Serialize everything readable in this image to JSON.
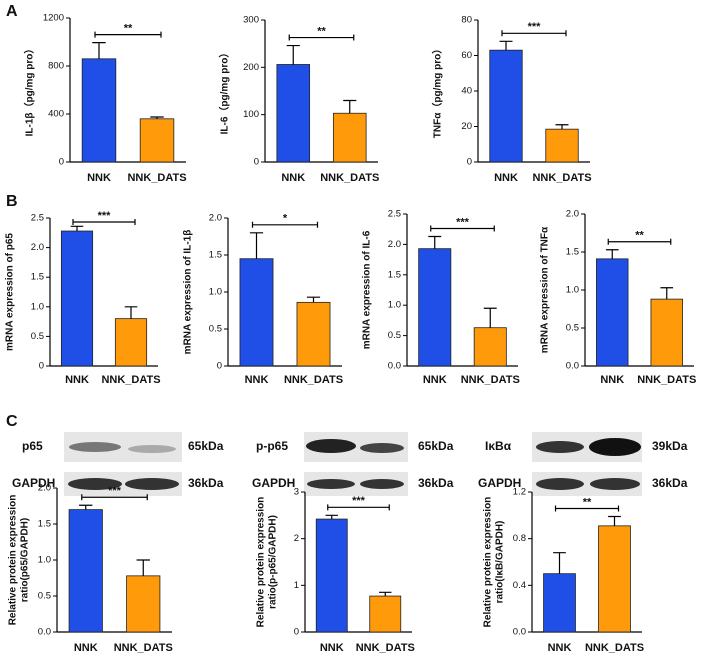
{
  "panel_labels": [
    "A",
    "B",
    "C"
  ],
  "blots": [
    {
      "protein": "p65",
      "size": "65kDa",
      "control": "GAPDH",
      "control_size": "36kDa"
    },
    {
      "protein": "p-p65",
      "size": "65kDa",
      "control": "GAPDH",
      "control_size": "36kDa"
    },
    {
      "protein": "IκBα",
      "size": "39kDa",
      "control": "GAPDH",
      "control_size": "36kDa"
    }
  ],
  "chart_data": [
    {
      "type": "bar",
      "ylabel": [
        "IL-1β（pg/mg pro）"
      ],
      "categories": [
        "NNK",
        "NNK_DATS"
      ],
      "values": [
        860,
        360
      ],
      "errors": [
        135,
        15
      ],
      "colors": [
        "#1f4fe6",
        "#ff9a0a"
      ],
      "ylim": [
        0,
        1200
      ],
      "yticks": [
        0,
        400,
        800,
        1200
      ],
      "annotation": "**"
    },
    {
      "type": "bar",
      "ylabel": [
        "IL-6（pg/mg pro）"
      ],
      "categories": [
        "NNK",
        "NNK_DATS"
      ],
      "values": [
        206,
        103
      ],
      "errors": [
        40,
        27
      ],
      "colors": [
        "#1f4fe6",
        "#ff9a0a"
      ],
      "ylim": [
        0,
        300
      ],
      "yticks": [
        0,
        100,
        200,
        300
      ],
      "annotation": "**"
    },
    {
      "type": "bar",
      "ylabel": [
        "TNFα（pg/mg pro）"
      ],
      "categories": [
        "NNK",
        "NNK_DATS"
      ],
      "values": [
        63,
        18.5
      ],
      "errors": [
        5,
        2.5
      ],
      "colors": [
        "#1f4fe6",
        "#ff9a0a"
      ],
      "ylim": [
        0,
        80
      ],
      "yticks": [
        0,
        20,
        40,
        60,
        80
      ],
      "annotation": "***"
    },
    {
      "type": "bar",
      "ylabel": [
        "mRNA expression of p65"
      ],
      "categories": [
        "NNK",
        "NNK_DATS"
      ],
      "values": [
        2.28,
        0.8
      ],
      "errors": [
        0.08,
        0.2
      ],
      "colors": [
        "#1f4fe6",
        "#ff9a0a"
      ],
      "ylim": [
        0,
        2.5
      ],
      "yticks": [
        0,
        0.5,
        {
          "value": 1,
          "label": "1.0"
        },
        1.5,
        {
          "value": 2,
          "label": "2.0"
        },
        2.5
      ],
      "annotation": "***"
    },
    {
      "type": "bar",
      "ylabel": [
        "mRNA expression of IL-1β"
      ],
      "categories": [
        "NNK",
        "NNK_DATS"
      ],
      "values": [
        1.45,
        0.86
      ],
      "errors": [
        0.35,
        0.07
      ],
      "colors": [
        "#1f4fe6",
        "#ff9a0a"
      ],
      "ylim": [
        0,
        2
      ],
      "yticks": [
        0,
        0.5,
        {
          "value": 1,
          "label": "1.0"
        },
        1.5,
        {
          "value": 2,
          "label": "2.0"
        }
      ],
      "annotation": "*"
    },
    {
      "type": "bar",
      "ylabel": [
        "mRNA expression of IL-6"
      ],
      "categories": [
        "NNK",
        "NNK_DATS"
      ],
      "values": [
        1.93,
        0.63
      ],
      "errors": [
        0.2,
        0.32
      ],
      "colors": [
        "#1f4fe6",
        "#ff9a0a"
      ],
      "ylim": [
        0,
        2.5
      ],
      "yticks": [
        {
          "value": 0,
          "label": "0.0"
        },
        0.5,
        {
          "value": 1,
          "label": "1.0"
        },
        1.5,
        {
          "value": 2,
          "label": "2.0"
        },
        2.5
      ],
      "annotation": "***"
    },
    {
      "type": "bar",
      "ylabel": [
        "mRNA expression of TNFα"
      ],
      "categories": [
        "NNK",
        "NNK_DATS"
      ],
      "values": [
        1.41,
        0.88
      ],
      "errors": [
        0.12,
        0.15
      ],
      "colors": [
        "#1f4fe6",
        "#ff9a0a"
      ],
      "ylim": [
        0,
        2
      ],
      "yticks": [
        {
          "value": 0,
          "label": "0.0"
        },
        0.5,
        {
          "value": 1,
          "label": "1.0"
        },
        1.5,
        {
          "value": 2,
          "label": "2.0"
        }
      ],
      "annotation": "**"
    },
    {
      "type": "bar",
      "ylabel": [
        "Relative protein expression",
        "ratio(p65/GAPDH)"
      ],
      "categories": [
        "NNK",
        "NNK_DATS"
      ],
      "values": [
        1.7,
        0.78
      ],
      "errors": [
        0.06,
        0.22
      ],
      "colors": [
        "#1f4fe6",
        "#ff9a0a"
      ],
      "ylim": [
        0,
        2
      ],
      "yticks": [
        {
          "value": 0,
          "label": "0.0"
        },
        0.5,
        {
          "value": 1,
          "label": "1.0"
        },
        1.5,
        {
          "value": 2,
          "label": "2.0"
        }
      ],
      "annotation": "***"
    },
    {
      "type": "bar",
      "ylabel": [
        "Relative protein expression",
        "ratio(p-p65/GAPDH)"
      ],
      "categories": [
        "NNK",
        "NNK_DATS"
      ],
      "values": [
        2.42,
        0.77
      ],
      "errors": [
        0.08,
        0.08
      ],
      "colors": [
        "#1f4fe6",
        "#ff9a0a"
      ],
      "ylim": [
        0,
        3
      ],
      "yticks": [
        0,
        1,
        2,
        3
      ],
      "annotation": "***"
    },
    {
      "type": "bar",
      "ylabel": [
        "Relative protein expression",
        "ratio(IκB/GAPDH)"
      ],
      "categories": [
        "NNK",
        "NNK_DATS"
      ],
      "values": [
        0.5,
        0.91
      ],
      "errors": [
        0.18,
        0.08
      ],
      "colors": [
        "#1f4fe6",
        "#ff9a0a"
      ],
      "ylim": [
        0,
        1.2
      ],
      "yticks": [
        {
          "value": 0,
          "label": "0.0"
        },
        0.4,
        0.8,
        1.2
      ],
      "annotation": "**"
    }
  ]
}
